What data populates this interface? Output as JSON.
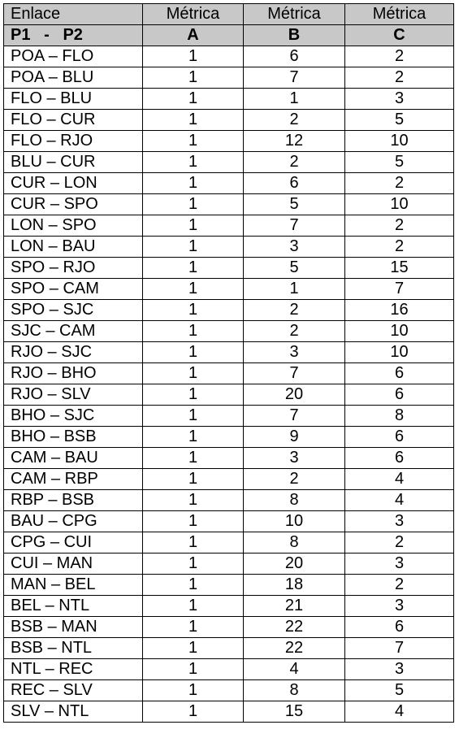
{
  "table": {
    "header_row1": [
      "Enlace",
      "Métrica",
      "Métrica",
      "Métrica"
    ],
    "header_row2": [
      "P1   -   P2",
      "A",
      "B",
      "C"
    ],
    "rows": [
      [
        "POA – FLO",
        "1",
        "6",
        "2"
      ],
      [
        "POA – BLU",
        "1",
        "7",
        "2"
      ],
      [
        "FLO – BLU",
        "1",
        "1",
        "3"
      ],
      [
        "FLO – CUR",
        "1",
        "2",
        "5"
      ],
      [
        "FLO – RJO",
        "1",
        "12",
        "10"
      ],
      [
        "BLU – CUR",
        "1",
        "2",
        "5"
      ],
      [
        "CUR – LON",
        "1",
        "6",
        "2"
      ],
      [
        "CUR – SPO",
        "1",
        "5",
        "10"
      ],
      [
        "LON – SPO",
        "1",
        "7",
        "2"
      ],
      [
        "LON – BAU",
        "1",
        "3",
        "2"
      ],
      [
        "SPO – RJO",
        "1",
        "5",
        "15"
      ],
      [
        "SPO – CAM",
        "1",
        "1",
        "7"
      ],
      [
        "SPO – SJC",
        "1",
        "2",
        "16"
      ],
      [
        "SJC – CAM",
        "1",
        "2",
        "10"
      ],
      [
        "RJO – SJC",
        "1",
        "3",
        "10"
      ],
      [
        "RJO – BHO",
        "1",
        "7",
        "6"
      ],
      [
        "RJO – SLV",
        "1",
        "20",
        "6"
      ],
      [
        "BHO – SJC",
        "1",
        "7",
        "8"
      ],
      [
        "BHO – BSB",
        "1",
        "9",
        "6"
      ],
      [
        "CAM – BAU",
        "1",
        "3",
        "6"
      ],
      [
        "CAM – RBP",
        "1",
        "2",
        "4"
      ],
      [
        "RBP – BSB",
        "1",
        "8",
        "4"
      ],
      [
        "BAU – CPG",
        "1",
        "10",
        "3"
      ],
      [
        "CPG – CUI",
        "1",
        "8",
        "2"
      ],
      [
        "CUI – MAN",
        "1",
        "20",
        "3"
      ],
      [
        "MAN – BEL",
        "1",
        "18",
        "2"
      ],
      [
        "BEL – NTL",
        "1",
        "21",
        "3"
      ],
      [
        "BSB – MAN",
        "1",
        "22",
        "6"
      ],
      [
        "BSB – NTL",
        "1",
        "22",
        "7"
      ],
      [
        "NTL – REC",
        "1",
        "4",
        "3"
      ],
      [
        "REC – SLV",
        "1",
        "8",
        "5"
      ],
      [
        "SLV – NTL",
        "1",
        "15",
        "4"
      ]
    ]
  }
}
